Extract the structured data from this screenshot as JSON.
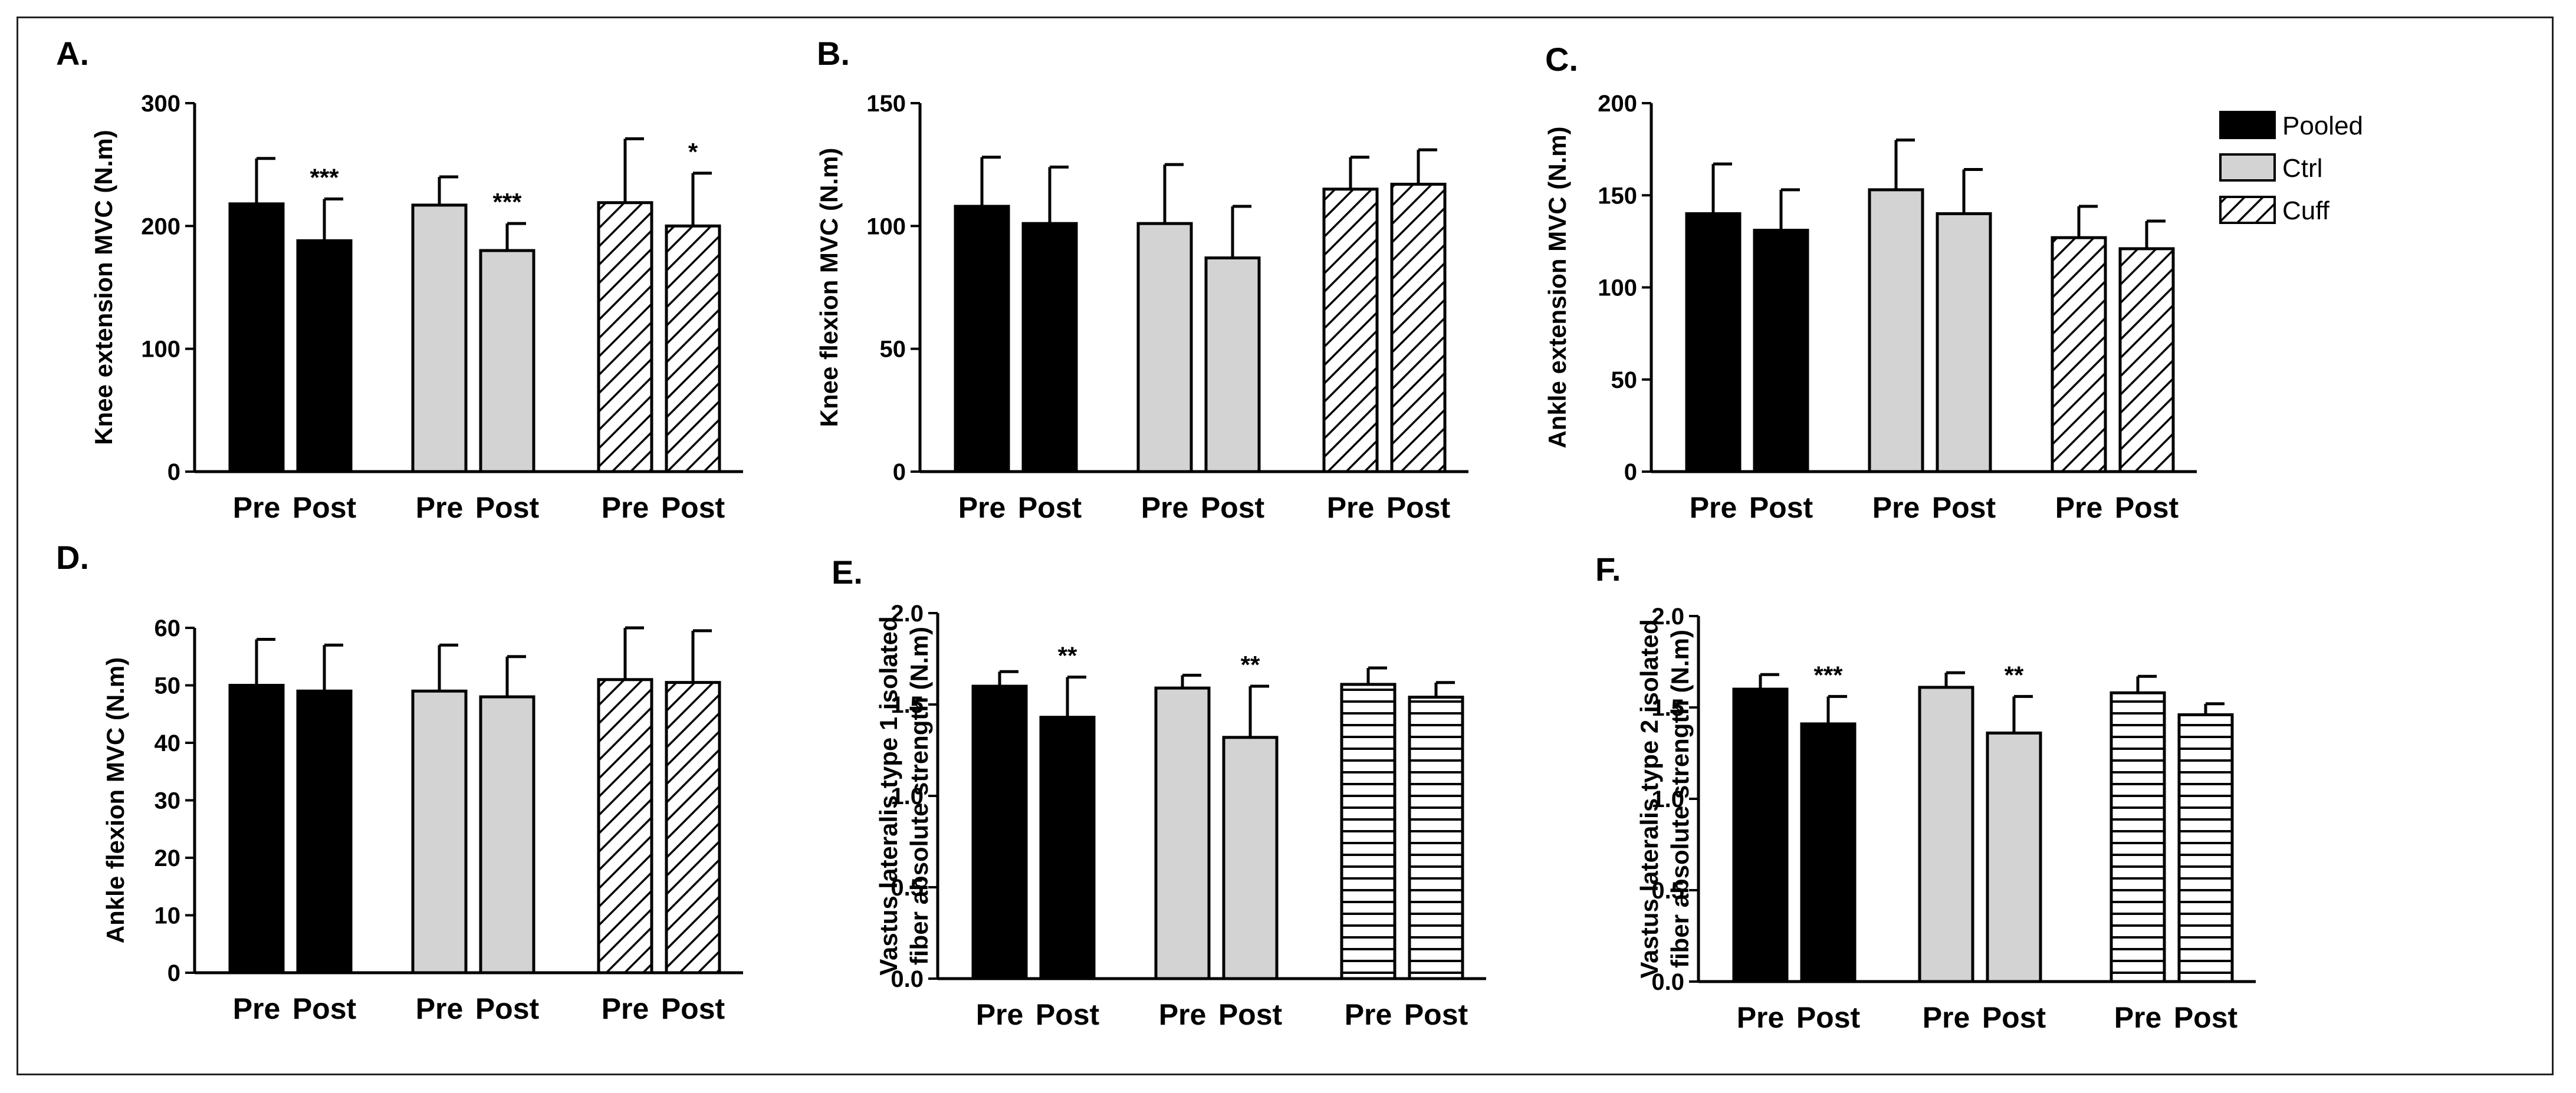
{
  "legend": [
    {
      "name": "Pooled",
      "pattern": "solid"
    },
    {
      "name": "Ctrl",
      "pattern": "gray"
    },
    {
      "name": "Cuff",
      "pattern": "diag"
    }
  ],
  "colors": {
    "pooled": "#000000",
    "ctrl": "#d3d3d3",
    "stroke": "#000000"
  },
  "chart_data": [
    {
      "type": "bar",
      "panel_label": "A.",
      "ylabel": "Knee extension MVC (N.m)",
      "ylim": [
        0,
        300
      ],
      "yticks": [
        0,
        100,
        200,
        300
      ],
      "ytick_labels": [
        "0",
        "100",
        "200",
        "300"
      ],
      "categories": [
        "Pre",
        "Post"
      ],
      "groups": [
        {
          "pattern": "solid",
          "values": [
            218,
            188
          ],
          "errors": [
            37,
            34
          ],
          "annotations": [
            "",
            "***"
          ]
        },
        {
          "pattern": "gray",
          "values": [
            217,
            180
          ],
          "errors": [
            23,
            22
          ],
          "annotations": [
            "",
            "***"
          ]
        },
        {
          "pattern": "diag",
          "values": [
            219,
            200
          ],
          "errors": [
            52,
            43
          ],
          "annotations": [
            "",
            "*"
          ]
        }
      ]
    },
    {
      "type": "bar",
      "panel_label": "B.",
      "ylabel": "Knee flexion MVC (N.m)",
      "ylim": [
        0,
        150
      ],
      "yticks": [
        0,
        50,
        100,
        150
      ],
      "ytick_labels": [
        "0",
        "50",
        "100",
        "150"
      ],
      "categories": [
        "Pre",
        "Post"
      ],
      "groups": [
        {
          "pattern": "solid",
          "values": [
            108,
            101
          ],
          "errors": [
            20,
            23
          ],
          "annotations": [
            "",
            ""
          ]
        },
        {
          "pattern": "gray",
          "values": [
            101,
            87
          ],
          "errors": [
            24,
            21
          ],
          "annotations": [
            "",
            ""
          ]
        },
        {
          "pattern": "diag",
          "values": [
            115,
            117
          ],
          "errors": [
            13,
            14
          ],
          "annotations": [
            "",
            ""
          ]
        }
      ]
    },
    {
      "type": "bar",
      "panel_label": "C.",
      "ylabel": "Ankle extension MVC (N.m)",
      "ylim": [
        0,
        200
      ],
      "yticks": [
        0,
        50,
        100,
        150,
        200
      ],
      "ytick_labels": [
        "0",
        "50",
        "100",
        "150",
        "200"
      ],
      "categories": [
        "Pre",
        "Post"
      ],
      "groups": [
        {
          "pattern": "solid",
          "values": [
            140,
            131
          ],
          "errors": [
            27,
            22
          ],
          "annotations": [
            "",
            ""
          ]
        },
        {
          "pattern": "gray",
          "values": [
            153,
            140
          ],
          "errors": [
            27,
            24
          ],
          "annotations": [
            "",
            ""
          ]
        },
        {
          "pattern": "diag",
          "values": [
            127,
            121
          ],
          "errors": [
            17,
            15
          ],
          "annotations": [
            "",
            ""
          ]
        }
      ]
    },
    {
      "type": "bar",
      "panel_label": "D.",
      "ylabel": "Ankle flexion MVC (N.m)",
      "ylim": [
        0,
        60
      ],
      "yticks": [
        0,
        10,
        20,
        30,
        40,
        50,
        60
      ],
      "ytick_labels": [
        "0",
        "10",
        "20",
        "30",
        "40",
        "50",
        "60"
      ],
      "categories": [
        "Pre",
        "Post"
      ],
      "groups": [
        {
          "pattern": "solid",
          "values": [
            50,
            49
          ],
          "errors": [
            8,
            8
          ],
          "annotations": [
            "",
            ""
          ]
        },
        {
          "pattern": "gray",
          "values": [
            49,
            48
          ],
          "errors": [
            8,
            7
          ],
          "annotations": [
            "",
            ""
          ]
        },
        {
          "pattern": "diag",
          "values": [
            51,
            50.5
          ],
          "errors": [
            9,
            9
          ],
          "annotations": [
            "",
            ""
          ]
        }
      ]
    },
    {
      "type": "bar",
      "panel_label": "E.",
      "ylabel": [
        "Vastus lateralis type 1 isolated",
        "fiber absolute strength (N.m)"
      ],
      "ylim": [
        0,
        2.0
      ],
      "yticks": [
        0,
        0.5,
        1.0,
        1.5,
        2.0
      ],
      "ytick_labels": [
        "0.0",
        "0.5",
        "1.0",
        "1.5",
        "2.0"
      ],
      "categories": [
        "Pre",
        "Post"
      ],
      "groups": [
        {
          "pattern": "solid",
          "values": [
            1.6,
            1.43
          ],
          "errors": [
            0.08,
            0.22
          ],
          "annotations": [
            "",
            "**"
          ]
        },
        {
          "pattern": "gray",
          "values": [
            1.59,
            1.32
          ],
          "errors": [
            0.07,
            0.28
          ],
          "annotations": [
            "",
            "**"
          ]
        },
        {
          "pattern": "horiz",
          "values": [
            1.61,
            1.54
          ],
          "errors": [
            0.09,
            0.08
          ],
          "annotations": [
            "",
            ""
          ]
        }
      ]
    },
    {
      "type": "bar",
      "panel_label": "F.",
      "ylabel": [
        "Vastus lateralis type 2 isolated",
        "fiber absolute strength (N.m)"
      ],
      "ylim": [
        0,
        2.0
      ],
      "yticks": [
        0,
        0.5,
        1.0,
        1.5,
        2.0
      ],
      "ytick_labels": [
        "0.0",
        "0.5",
        "1.0",
        "1.5",
        "2.0"
      ],
      "categories": [
        "Pre",
        "Post"
      ],
      "groups": [
        {
          "pattern": "solid",
          "values": [
            1.6,
            1.41
          ],
          "errors": [
            0.08,
            0.15
          ],
          "annotations": [
            "",
            "***"
          ]
        },
        {
          "pattern": "gray",
          "values": [
            1.61,
            1.36
          ],
          "errors": [
            0.08,
            0.2
          ],
          "annotations": [
            "",
            "**"
          ]
        },
        {
          "pattern": "horiz",
          "values": [
            1.58,
            1.46
          ],
          "errors": [
            0.09,
            0.06
          ],
          "annotations": [
            "",
            ""
          ]
        }
      ]
    }
  ]
}
